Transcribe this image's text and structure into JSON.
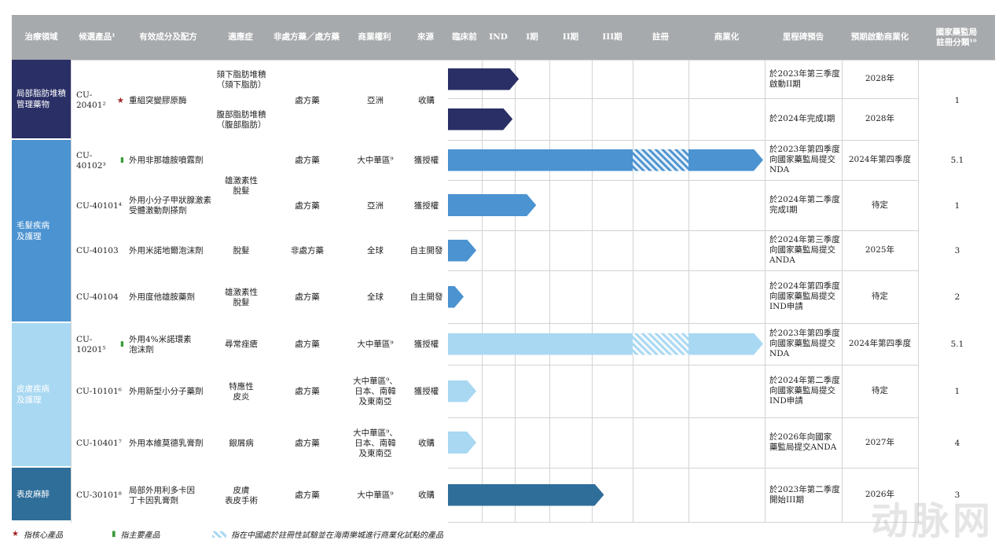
{
  "headers": [
    "治療領域",
    "候選產品¹",
    "有效成分及配方",
    "適應症",
    "非處方藥／處方藥",
    "商業權利",
    "來源",
    "臨床前",
    "IND",
    "I期",
    "II期",
    "III期",
    "註冊",
    "商業化",
    "里程碑預告",
    "預期啟動商業化",
    "國家藥監局\n註冊分類¹⁰"
  ],
  "areas": [
    {
      "label": "局部脂肪堆積\n管理藥物",
      "color": "#2a2f66"
    },
    {
      "label": "毛髮疾病\n及護理",
      "color": "#4b93d1"
    },
    {
      "label": "皮膚疾病\n及護理",
      "color": "#a9d8f2"
    },
    {
      "label": "表皮麻醉",
      "color": "#2f6e99"
    }
  ],
  "rows": [
    {
      "code": "CU-20401²",
      "ingredient": "重組突變膠原酶",
      "indication": "頦下脂肪堆積\n（頦下脂肪）",
      "rx": "處方藥",
      "rights": "亞洲",
      "source": "收購",
      "milestone": "於2023年第三季度\n啟動II期",
      "launch": "2028年",
      "class": "1",
      "progress": 0.225
    },
    {
      "code": "",
      "ingredient": "",
      "indication": "腹部脂肪堆積\n（腹部脂肪）",
      "rx": "",
      "rights": "",
      "source": "",
      "milestone": "於2024年完成I期",
      "launch": "2028年",
      "class": "",
      "progress": 0.205
    },
    {
      "code": "CU-40102³",
      "ingredient": "外用非那雄胺噴霧劑",
      "indication": "雄激素性\n脫髮",
      "rx": "處方藥",
      "rights": "大中華區⁹",
      "source": "獲授權",
      "milestone": "於2023年第四季度\n向國家藥監局提交\nNDA",
      "launch": "2024年第四季度",
      "class": "5.1",
      "progress": 1.0
    },
    {
      "code": "CU-40101⁴",
      "ingredient": "外用小分子甲狀腺激素\n受體激動劑搽劑",
      "indication": "",
      "rx": "處方藥",
      "rights": "亞洲",
      "source": "獲授權",
      "milestone": "於2024年第二季度\n完成I期",
      "launch": "待定",
      "class": "1",
      "progress": 0.28
    },
    {
      "code": "CU-40103",
      "ingredient": "外用米諾地爾泡沫劑",
      "indication": "脫髮",
      "rx": "非處方藥",
      "rights": "全球",
      "source": "自主開發",
      "milestone": "於2024年第三季度\n向國家藥監局提交\nANDA",
      "launch": "2025年",
      "class": "3",
      "progress": 0.09
    },
    {
      "code": "CU-40104",
      "ingredient": "外用度他雄胺藥劑",
      "indication": "雄激素性\n脫髮",
      "rx": "處方藥",
      "rights": "全球",
      "source": "自主開發",
      "milestone": "於2024年第四季度\n向國家藥監局提交\nIND申請",
      "launch": "待定",
      "class": "2",
      "progress": 0.05
    },
    {
      "code": "CU-10201⁵",
      "ingredient": "外用4%米諾環素\n泡沫劑",
      "indication": "尋常痤瘡",
      "rx": "處方藥",
      "rights": "大中華區⁹",
      "source": "獲授權",
      "milestone": "於2023年第四季度\n向國家藥監局提交\nNDA",
      "launch": "2024年第四季度",
      "class": "5.1",
      "progress": 1.0
    },
    {
      "code": "CU-10101⁶",
      "ingredient": "外用新型小分子藥劑",
      "indication": "特應性\n皮炎",
      "rx": "處方藥",
      "rights": "大中華區⁹、\n日本、南韓\n及東南亞",
      "source": "獲授權",
      "milestone": "於2024年第二季度\n向國家藥監局提交\nIND申請",
      "launch": "待定",
      "class": "1",
      "progress": 0.09
    },
    {
      "code": "CU-10401⁷",
      "ingredient": "外用本維莫德乳膏劑",
      "indication": "銀屑病",
      "rx": "處方藥",
      "rights": "大中華區⁹、\n日本、南韓\n及東南亞",
      "source": "收購",
      "milestone": "於2026年向國家\n藥監局提交ANDA",
      "launch": "2027年",
      "class": "4",
      "progress": 0.09
    },
    {
      "code": "CU-30101⁸",
      "ingredient": "局部外用利多卡因\n丁卡因乳膏劑",
      "indication": "皮膚\n表皮手術",
      "rx": "處方藥",
      "rights": "大中華區⁹",
      "source": "收購",
      "milestone": "於2023年第二季度\n開始III期",
      "launch": "2026年",
      "class": "3",
      "progress": 0.495
    }
  ],
  "legend": {
    "core": "指核心產品",
    "main": "指主要產品",
    "hatch": "指在中國處於註冊性試驗並在海南樂城進行商業化試點的產品"
  },
  "watermark": "动脉网"
}
